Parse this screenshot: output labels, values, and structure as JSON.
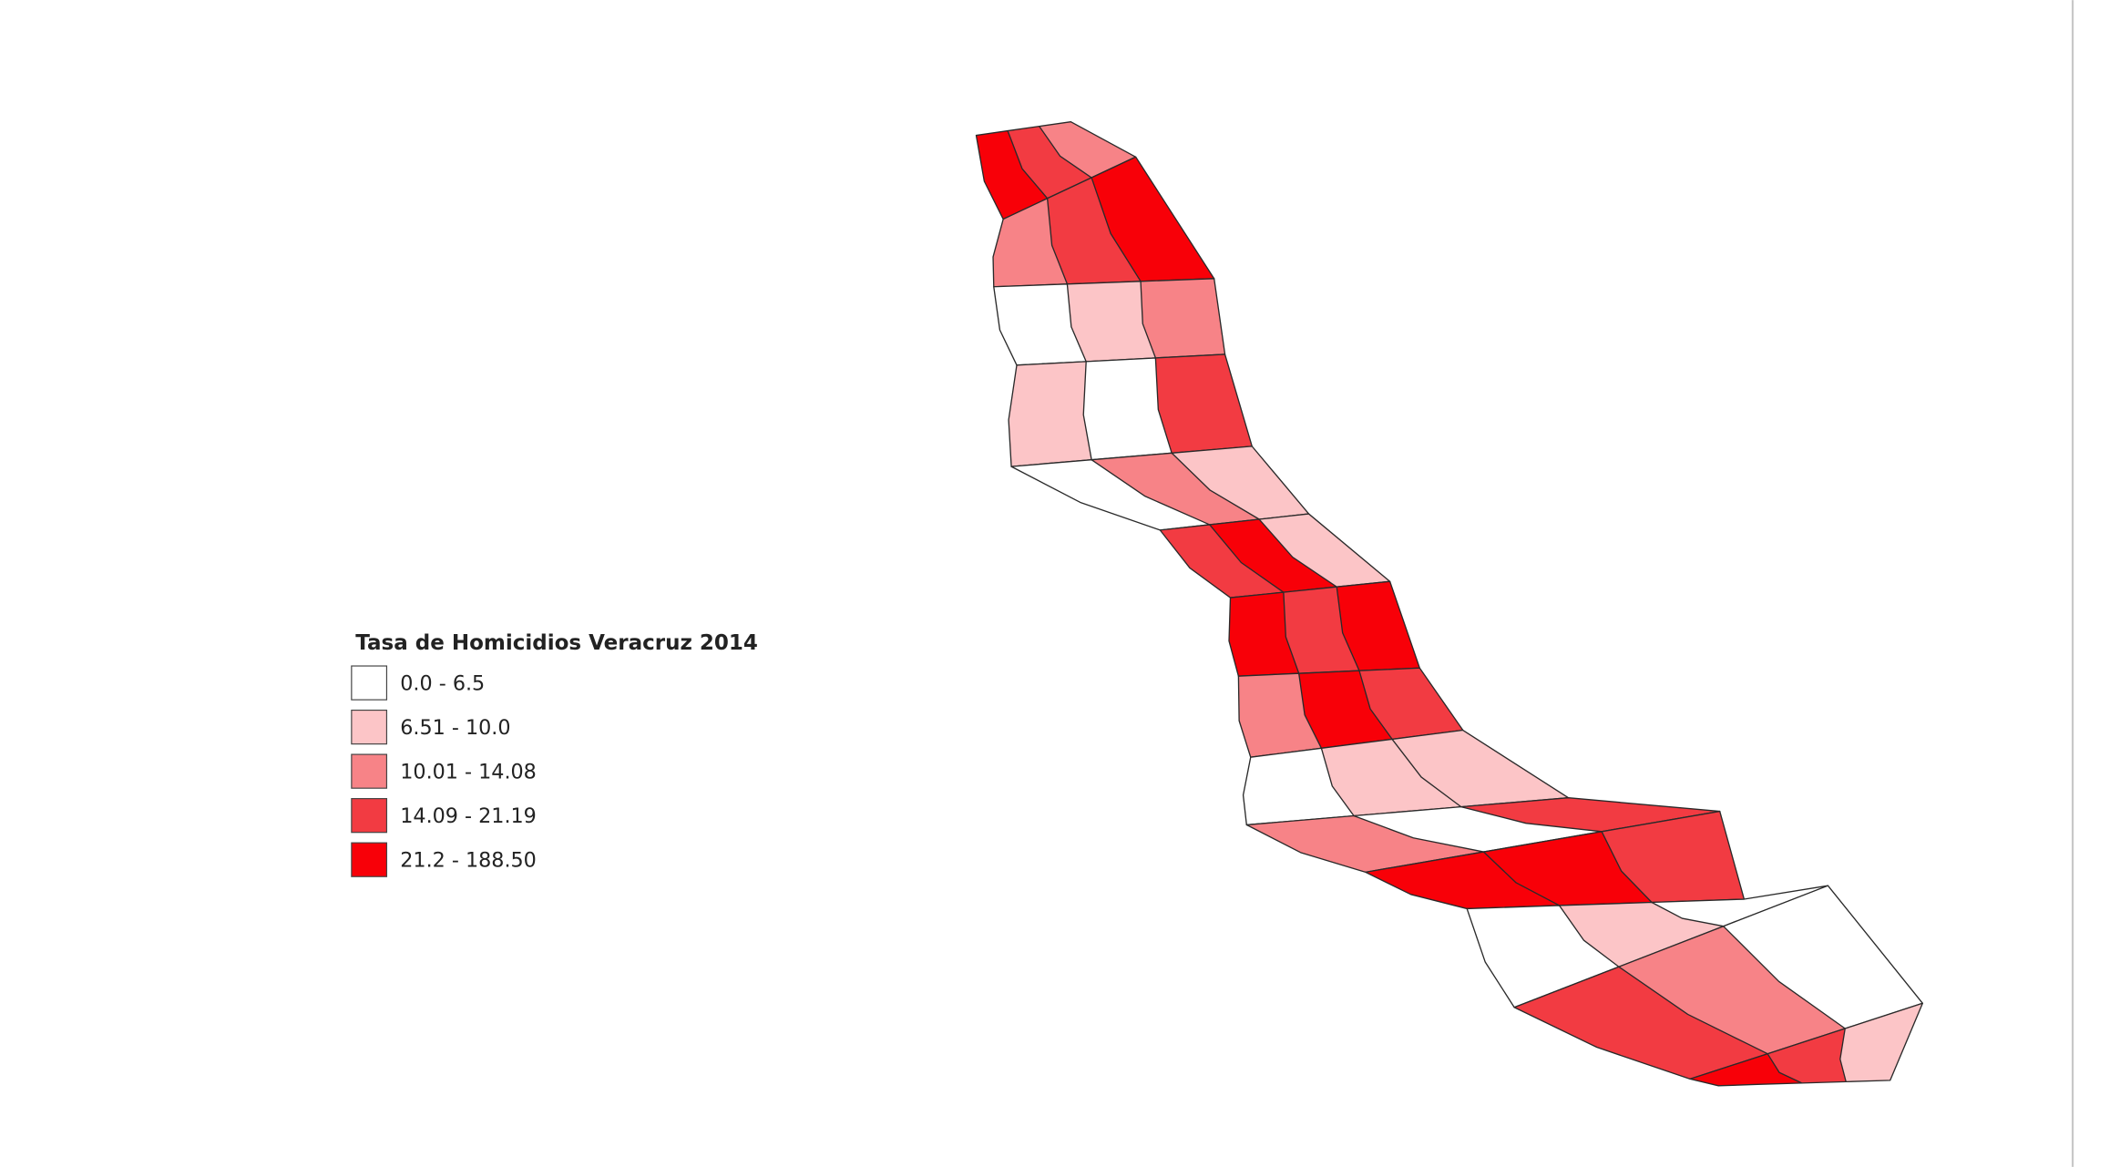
{
  "legend": {
    "title": "Tasa de Homicidios Veracruz 2014",
    "items": [
      {
        "label": "0.0 - 6.5",
        "color": "#ffffff"
      },
      {
        "label": "6.51 - 10.0",
        "color": "#fcc5c7"
      },
      {
        "label": "10.01 - 14.08",
        "color": "#f78387"
      },
      {
        "label": "14.09 - 21.19",
        "color": "#f23b42"
      },
      {
        "label": "21.2 - 188.50",
        "color": "#f80008"
      }
    ]
  }
}
